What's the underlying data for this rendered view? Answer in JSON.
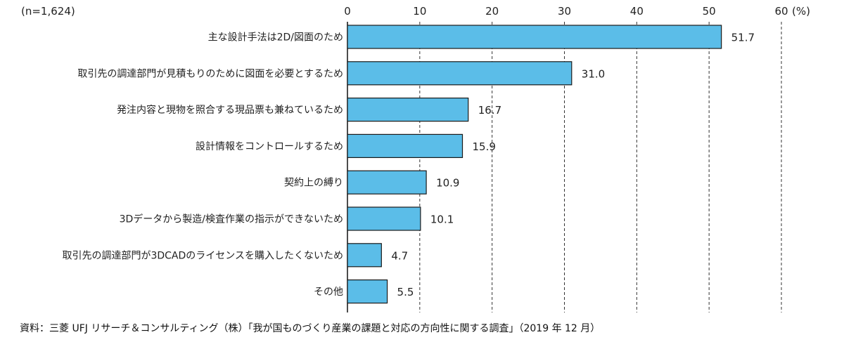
{
  "chart_data": {
    "type": "bar",
    "orientation": "horizontal",
    "sample_note": "(n=1,624)",
    "unit": "(%)",
    "categories": [
      "主な設計手法は2D/図面のため",
      "取引先の調達部門が見積もりのために図面を必要とするため",
      "発注内容と現物を照合する現品票も兼ねているため",
      "設計情報をコントロールするため",
      "契約上の縛り",
      "3Dデータから製造/検査作業の指示ができないため",
      "取引先の調達部門が3DCADのライセンスを購入したくないため",
      "その他"
    ],
    "values": [
      51.7,
      31.0,
      16.7,
      15.9,
      10.9,
      10.1,
      4.7,
      5.5
    ],
    "value_labels": [
      "51.7",
      "31.0",
      "16.7",
      "15.9",
      "10.9",
      "10.1",
      "4.7",
      "5.5"
    ],
    "xlim": [
      0,
      60
    ],
    "ticks": [
      0,
      10,
      20,
      30,
      40,
      50,
      60
    ],
    "tick_labels": [
      "0",
      "10",
      "20",
      "30",
      "40",
      "50",
      "60"
    ],
    "grid": "vertical-dashed",
    "bar_color": "#5bbde8",
    "bar_edge_color": "#1a1a1a",
    "source": "資料：三菱 UFJ リサーチ＆コンサルティング（株）「我が国ものづくり産業の課題と対応の方向性に関する調査」（2019 年 12 月）"
  }
}
